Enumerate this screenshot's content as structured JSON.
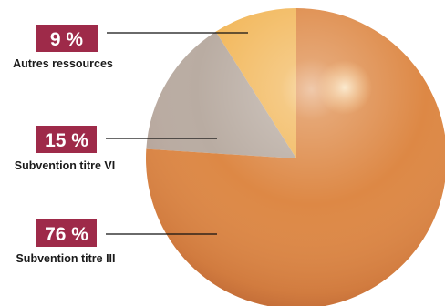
{
  "chart_data": {
    "type": "pie",
    "title": "",
    "slices": [
      {
        "label": "Autres ressources",
        "value": 9,
        "value_label": "9 %",
        "color": "#f2b85c"
      },
      {
        "label": "Subvention titre VI",
        "value": 15,
        "value_label": "15 %",
        "color": "#b9aca2"
      },
      {
        "label": "Subvention titre III",
        "value": 76,
        "value_label": "76 %",
        "color": "#dd8845"
      }
    ],
    "badge_color": "#9e2a49",
    "leader_line_color": "#111111",
    "start_angle_deg": 0,
    "direction": "counterclockwise"
  }
}
